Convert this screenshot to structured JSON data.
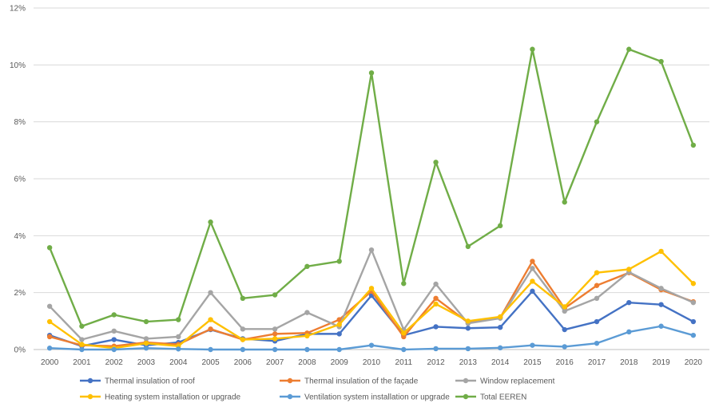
{
  "chart_data": {
    "type": "line",
    "x": [
      "2000",
      "2001",
      "2002",
      "2003",
      "2004",
      "2005",
      "2006",
      "2007",
      "2008",
      "2009",
      "2010",
      "2011",
      "2012",
      "2013",
      "2014",
      "2015",
      "2016",
      "2017",
      "2018",
      "2019",
      "2020"
    ],
    "ylim": [
      0,
      12
    ],
    "yticks": [
      "0%",
      "2%",
      "4%",
      "6%",
      "8%",
      "10%",
      "12%"
    ],
    "ytick_values": [
      0,
      2,
      4,
      6,
      8,
      10,
      12
    ],
    "grid": "horizontal",
    "legend_position": "bottom",
    "series": [
      {
        "name": "Thermal insulation of roof",
        "color": "#4472C4",
        "values": [
          0.5,
          0.12,
          0.35,
          0.15,
          0.25,
          0.7,
          0.38,
          0.3,
          0.55,
          0.55,
          1.9,
          0.5,
          0.8,
          0.75,
          0.78,
          2.05,
          0.7,
          0.98,
          1.65,
          1.58,
          0.98
        ]
      },
      {
        "name": "Thermal insulation of the façade",
        "color": "#ED7D31",
        "values": [
          0.45,
          0.15,
          0.12,
          0.25,
          0.18,
          0.72,
          0.35,
          0.55,
          0.58,
          1.05,
          2.05,
          0.45,
          1.8,
          0.95,
          1.12,
          3.1,
          1.45,
          2.25,
          2.7,
          2.1,
          1.68
        ]
      },
      {
        "name": "Window replacement",
        "color": "#A5A5A5",
        "values": [
          1.52,
          0.35,
          0.65,
          0.38,
          0.45,
          2.0,
          0.72,
          0.72,
          1.3,
          0.8,
          3.5,
          0.7,
          2.3,
          0.92,
          1.1,
          2.85,
          1.35,
          1.8,
          2.72,
          2.15,
          1.65
        ]
      },
      {
        "name": "Heating system installation or upgrade",
        "color": "#FFC000",
        "values": [
          0.98,
          0.18,
          0.05,
          0.22,
          0.12,
          1.05,
          0.35,
          0.38,
          0.48,
          0.88,
          2.15,
          0.58,
          1.6,
          1.0,
          1.15,
          2.4,
          1.5,
          2.7,
          2.82,
          3.45,
          2.32
        ]
      },
      {
        "name": "Ventilation system installation or upgrade",
        "color": "#5B9BD5",
        "values": [
          0.05,
          0.0,
          0.0,
          0.05,
          0.02,
          0.0,
          0.0,
          0.0,
          0.0,
          0.0,
          0.15,
          0.0,
          0.03,
          0.03,
          0.06,
          0.15,
          0.1,
          0.22,
          0.62,
          0.82,
          0.5
        ]
      },
      {
        "name": "Total EEREN",
        "color": "#70AD47",
        "values": [
          3.58,
          0.82,
          1.22,
          0.98,
          1.05,
          4.48,
          1.8,
          1.92,
          2.92,
          3.1,
          9.72,
          2.32,
          6.58,
          3.62,
          4.35,
          10.55,
          5.18,
          8.0,
          10.55,
          10.12,
          7.18
        ]
      }
    ]
  }
}
